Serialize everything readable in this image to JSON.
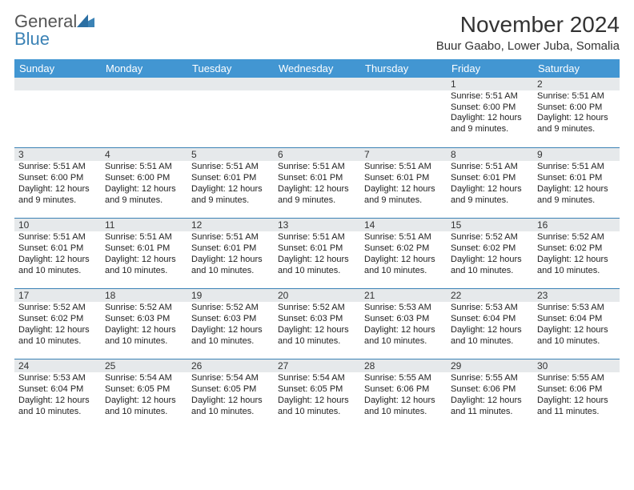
{
  "brand": {
    "general": "General",
    "blue": "Blue"
  },
  "title": "November 2024",
  "subtitle": "Buur Gaabo, Lower Juba, Somalia",
  "weekdays": [
    "Sunday",
    "Monday",
    "Tuesday",
    "Wednesday",
    "Thursday",
    "Friday",
    "Saturday"
  ],
  "colors": {
    "header": "#4296d2",
    "rule": "#3b82b5",
    "alt": "#e6e9eb"
  },
  "weeks": [
    [
      {
        "n": "",
        "lines": []
      },
      {
        "n": "",
        "lines": []
      },
      {
        "n": "",
        "lines": []
      },
      {
        "n": "",
        "lines": []
      },
      {
        "n": "",
        "lines": []
      },
      {
        "n": "1",
        "lines": [
          "Sunrise: 5:51 AM",
          "Sunset: 6:00 PM",
          "Daylight: 12 hours and 9 minutes."
        ]
      },
      {
        "n": "2",
        "lines": [
          "Sunrise: 5:51 AM",
          "Sunset: 6:00 PM",
          "Daylight: 12 hours and 9 minutes."
        ]
      }
    ],
    [
      {
        "n": "3",
        "lines": [
          "Sunrise: 5:51 AM",
          "Sunset: 6:00 PM",
          "Daylight: 12 hours and 9 minutes."
        ]
      },
      {
        "n": "4",
        "lines": [
          "Sunrise: 5:51 AM",
          "Sunset: 6:00 PM",
          "Daylight: 12 hours and 9 minutes."
        ]
      },
      {
        "n": "5",
        "lines": [
          "Sunrise: 5:51 AM",
          "Sunset: 6:01 PM",
          "Daylight: 12 hours and 9 minutes."
        ]
      },
      {
        "n": "6",
        "lines": [
          "Sunrise: 5:51 AM",
          "Sunset: 6:01 PM",
          "Daylight: 12 hours and 9 minutes."
        ]
      },
      {
        "n": "7",
        "lines": [
          "Sunrise: 5:51 AM",
          "Sunset: 6:01 PM",
          "Daylight: 12 hours and 9 minutes."
        ]
      },
      {
        "n": "8",
        "lines": [
          "Sunrise: 5:51 AM",
          "Sunset: 6:01 PM",
          "Daylight: 12 hours and 9 minutes."
        ]
      },
      {
        "n": "9",
        "lines": [
          "Sunrise: 5:51 AM",
          "Sunset: 6:01 PM",
          "Daylight: 12 hours and 9 minutes."
        ]
      }
    ],
    [
      {
        "n": "10",
        "lines": [
          "Sunrise: 5:51 AM",
          "Sunset: 6:01 PM",
          "Daylight: 12 hours and 10 minutes."
        ]
      },
      {
        "n": "11",
        "lines": [
          "Sunrise: 5:51 AM",
          "Sunset: 6:01 PM",
          "Daylight: 12 hours and 10 minutes."
        ]
      },
      {
        "n": "12",
        "lines": [
          "Sunrise: 5:51 AM",
          "Sunset: 6:01 PM",
          "Daylight: 12 hours and 10 minutes."
        ]
      },
      {
        "n": "13",
        "lines": [
          "Sunrise: 5:51 AM",
          "Sunset: 6:01 PM",
          "Daylight: 12 hours and 10 minutes."
        ]
      },
      {
        "n": "14",
        "lines": [
          "Sunrise: 5:51 AM",
          "Sunset: 6:02 PM",
          "Daylight: 12 hours and 10 minutes."
        ]
      },
      {
        "n": "15",
        "lines": [
          "Sunrise: 5:52 AM",
          "Sunset: 6:02 PM",
          "Daylight: 12 hours and 10 minutes."
        ]
      },
      {
        "n": "16",
        "lines": [
          "Sunrise: 5:52 AM",
          "Sunset: 6:02 PM",
          "Daylight: 12 hours and 10 minutes."
        ]
      }
    ],
    [
      {
        "n": "17",
        "lines": [
          "Sunrise: 5:52 AM",
          "Sunset: 6:02 PM",
          "Daylight: 12 hours and 10 minutes."
        ]
      },
      {
        "n": "18",
        "lines": [
          "Sunrise: 5:52 AM",
          "Sunset: 6:03 PM",
          "Daylight: 12 hours and 10 minutes."
        ]
      },
      {
        "n": "19",
        "lines": [
          "Sunrise: 5:52 AM",
          "Sunset: 6:03 PM",
          "Daylight: 12 hours and 10 minutes."
        ]
      },
      {
        "n": "20",
        "lines": [
          "Sunrise: 5:52 AM",
          "Sunset: 6:03 PM",
          "Daylight: 12 hours and 10 minutes."
        ]
      },
      {
        "n": "21",
        "lines": [
          "Sunrise: 5:53 AM",
          "Sunset: 6:03 PM",
          "Daylight: 12 hours and 10 minutes."
        ]
      },
      {
        "n": "22",
        "lines": [
          "Sunrise: 5:53 AM",
          "Sunset: 6:04 PM",
          "Daylight: 12 hours and 10 minutes."
        ]
      },
      {
        "n": "23",
        "lines": [
          "Sunrise: 5:53 AM",
          "Sunset: 6:04 PM",
          "Daylight: 12 hours and 10 minutes."
        ]
      }
    ],
    [
      {
        "n": "24",
        "lines": [
          "Sunrise: 5:53 AM",
          "Sunset: 6:04 PM",
          "Daylight: 12 hours and 10 minutes."
        ]
      },
      {
        "n": "25",
        "lines": [
          "Sunrise: 5:54 AM",
          "Sunset: 6:05 PM",
          "Daylight: 12 hours and 10 minutes."
        ]
      },
      {
        "n": "26",
        "lines": [
          "Sunrise: 5:54 AM",
          "Sunset: 6:05 PM",
          "Daylight: 12 hours and 10 minutes."
        ]
      },
      {
        "n": "27",
        "lines": [
          "Sunrise: 5:54 AM",
          "Sunset: 6:05 PM",
          "Daylight: 12 hours and 10 minutes."
        ]
      },
      {
        "n": "28",
        "lines": [
          "Sunrise: 5:55 AM",
          "Sunset: 6:06 PM",
          "Daylight: 12 hours and 10 minutes."
        ]
      },
      {
        "n": "29",
        "lines": [
          "Sunrise: 5:55 AM",
          "Sunset: 6:06 PM",
          "Daylight: 12 hours and 11 minutes."
        ]
      },
      {
        "n": "30",
        "lines": [
          "Sunrise: 5:55 AM",
          "Sunset: 6:06 PM",
          "Daylight: 12 hours and 11 minutes."
        ]
      }
    ]
  ]
}
